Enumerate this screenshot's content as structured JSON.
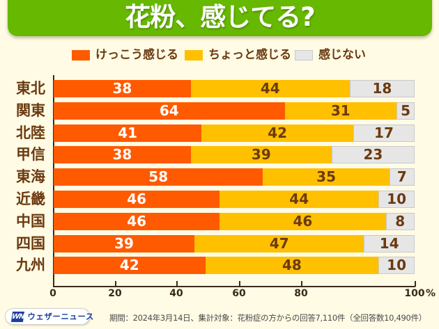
{
  "chart_data": {
    "type": "bar",
    "orientation": "horizontal-stacked",
    "title": "花粉、感じてる?",
    "categories": [
      "東北",
      "関東",
      "北陸",
      "甲信",
      "東海",
      "近畿",
      "中国",
      "四国",
      "九州"
    ],
    "series": [
      {
        "name": "けっこう感じる",
        "color": "#ff5a00",
        "label_color": "#ffffff",
        "values": [
          38,
          64,
          41,
          38,
          58,
          46,
          46,
          39,
          42
        ]
      },
      {
        "name": "ちょっと感じる",
        "color": "#ffc000",
        "label_color": "#6b3a10",
        "values": [
          44,
          31,
          42,
          39,
          35,
          44,
          46,
          47,
          48
        ]
      },
      {
        "name": "感じない",
        "color": "#e6e6e6",
        "label_color": "#6b3a10",
        "values": [
          18,
          5,
          17,
          23,
          7,
          10,
          8,
          14,
          10
        ]
      }
    ],
    "xlim": [
      0,
      100
    ],
    "x_tick_labels": [
      "0",
      "20",
      "40",
      "60",
      "80",
      "100"
    ],
    "x_unit": "%",
    "xlabel": "",
    "ylabel": "",
    "legend_position": "top",
    "grid": false
  },
  "footer": {
    "brand_mark": "WN",
    "brand_name": "ウェザーニュース",
    "note": "期間：2024年3月14日、集計対象：花粉症の方からの回答7,110件（全回答数10,490件）"
  },
  "colors": {
    "banner": "#66b800",
    "background": "#fffbe5",
    "text": "#6b3a10"
  }
}
